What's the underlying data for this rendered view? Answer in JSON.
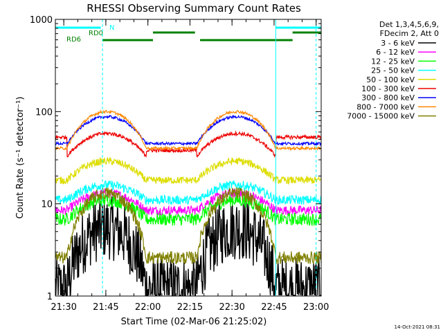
{
  "chart_data": {
    "type": "line",
    "title": "RHESSI Observing Summary Count Rates",
    "xlabel": "Start Time (02-Mar-06 21:25:02)",
    "ylabel": "Count Rate (s⁻¹ detector⁻¹)",
    "y_scale": "log",
    "ylim": [
      1,
      1000
    ],
    "xlim_minutes": [
      21.45,
      23.03
    ],
    "x_tick_labels": [
      "21:30",
      "21:45",
      "22:00",
      "22:15",
      "22:30",
      "22:45",
      "23:00"
    ],
    "y_tick_labels": [
      "1",
      "10",
      "100",
      "1000"
    ],
    "legend_header": [
      "Det 1,3,4,5,6,9,",
      "FDecim 2, Att 0"
    ],
    "flag_labels": [
      "N",
      "RD0",
      "RD6"
    ],
    "footer_date": "14-Oct-2021 08:31",
    "series": [
      {
        "name": "3 - 6 keV",
        "color": "#000000"
      },
      {
        "name": "6 - 12 keV",
        "color": "#ff00ff"
      },
      {
        "name": "12 - 25 keV",
        "color": "#00ff00"
      },
      {
        "name": "25 - 50 keV",
        "color": "#00ffff"
      },
      {
        "name": "50 - 100 keV",
        "color": "#dddd00"
      },
      {
        "name": "100 - 300 keV",
        "color": "#ee0000"
      },
      {
        "name": "300 - 800 keV",
        "color": "#0000ff"
      },
      {
        "name": "800 - 7000 keV",
        "color": "#ff8800"
      },
      {
        "name": "7000 - 15000 keV",
        "color": "#808000"
      }
    ]
  }
}
